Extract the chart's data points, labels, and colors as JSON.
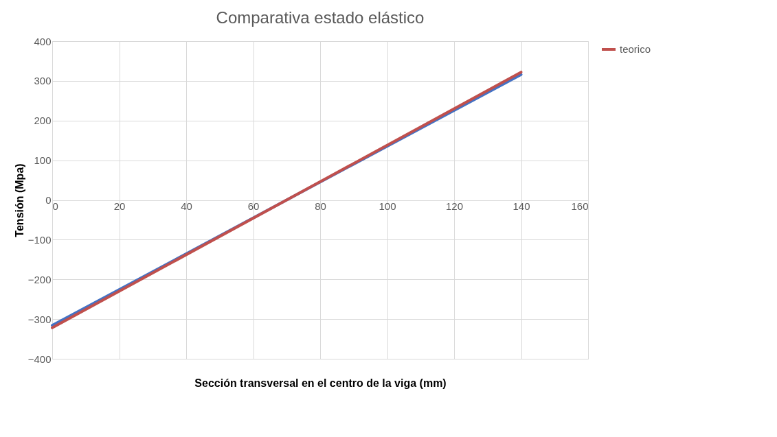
{
  "chart_data": {
    "type": "line",
    "title": "Comparativa estado elástico",
    "xlabel": "Sección transversal en el centro de la viga (mm)",
    "ylabel": "Tensión (Mpa)",
    "series": [
      {
        "color": "#4472c4",
        "values": [
          -316,
          316
        ]
      },
      {
        "name": "teorico",
        "color": "#c0504d",
        "values": [
          -322,
          322
        ]
      }
    ],
    "x": [
      0,
      140
    ],
    "xlim": [
      0,
      160
    ],
    "xticks": [
      0,
      20,
      40,
      60,
      80,
      100,
      120,
      140,
      160
    ],
    "ylim": [
      -400,
      400
    ],
    "yticks": [
      -400,
      -300,
      -200,
      -100,
      0,
      100,
      200,
      300,
      400
    ],
    "grid": true,
    "legend": "right",
    "marker": "none",
    "line_style": "solid"
  }
}
